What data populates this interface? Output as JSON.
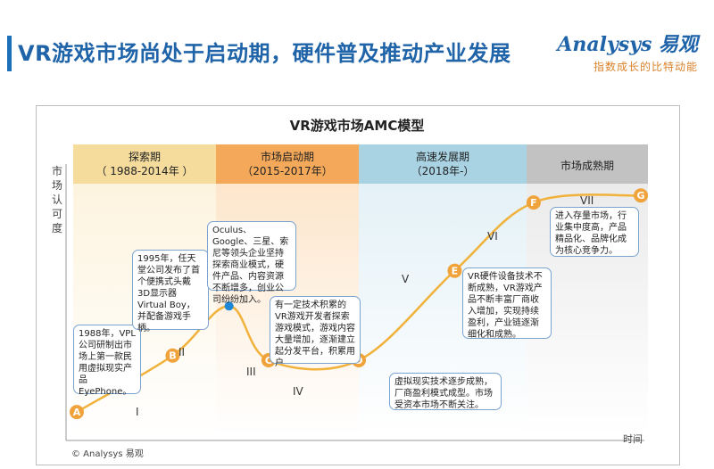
{
  "page": {
    "title": "VR游戏市场尚处于启动期，硬件普及推动产业发展",
    "brand_name": "Analysys 易观",
    "brand_tagline": "指数成长的比特动能",
    "copyright": "© Analysys 易观"
  },
  "chart_data": {
    "type": "line",
    "title": "VR游戏市场AMC模型",
    "ylabel": "市场认可度",
    "xlabel": "时间",
    "phases": [
      {
        "name": "探索期",
        "years": "（ 1988-2014年 ）",
        "color": "#f5dc9d"
      },
      {
        "name": "市场启动期",
        "years": "（2015-2017年）",
        "color": "#f4a85a"
      },
      {
        "name": "高速发展期",
        "years": "（2018年-）",
        "color": "#a9d3e3"
      },
      {
        "name": "市场成熟期",
        "years": "",
        "color": "#c2c2c2"
      }
    ],
    "points": [
      {
        "label": "A",
        "x": 0.0,
        "y": 0.03
      },
      {
        "label": "B",
        "x": 0.17,
        "y": 0.27
      },
      {
        "label": "peak",
        "x": 0.27,
        "y": 0.48
      },
      {
        "label": "C",
        "x": 0.34,
        "y": 0.25
      },
      {
        "label": "D",
        "x": 0.5,
        "y": 0.25
      },
      {
        "label": "E",
        "x": 0.67,
        "y": 0.63
      },
      {
        "label": "F",
        "x": 0.81,
        "y": 0.92
      },
      {
        "label": "G",
        "x": 1.0,
        "y": 0.95
      }
    ],
    "stage_numerals": [
      "I",
      "II",
      "III",
      "IV",
      "V",
      "VI",
      "VII"
    ],
    "marker_color": "#f0a23b",
    "peak_color": "#1e88d6",
    "curve_color": "#f0b23a"
  },
  "notes": [
    "1988年，VPL公司研制出市场上第一款民用虚拟现实产品EyePhone。",
    "1995年，任天堂公司发布了首个便携式头戴3D显示器Virtual Boy，并配备游戏手柄。",
    "Oculus、Google、三星、索尼等领头企业坚持探索商业模式，硬件产品、内容资源不断增多，创业公司纷纷加入。",
    "有一定技术积累的VR游戏开发者探索游戏模式，游戏内容大量增加，逐渐建立起分发平台，积累用户",
    "虚拟现实技术逐步成熟，厂商盈利模式成型。市场受资本市场不断关注。",
    "VR硬件设备技术不断成熟，VR游戏产品不断丰富厂商收入增加，实现持续盈利，产业链逐渐细化和成熟。",
    "进入存量市场，行业集中度高，产品精品化、品牌化成为核心竞争力。"
  ]
}
